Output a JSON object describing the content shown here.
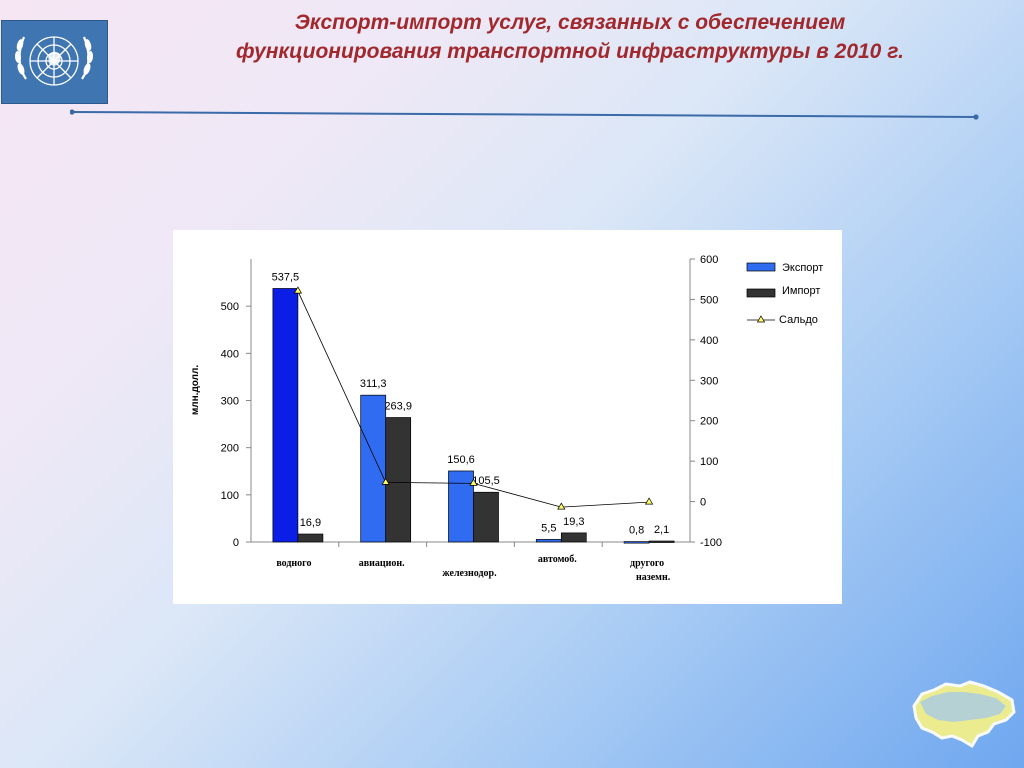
{
  "slide": {
    "title_line1": "Экспорт-импорт услуг, связанных с обеспечением",
    "title_line2": "функционирования транспортной инфраструктуры  в  2010 г."
  },
  "colors": {
    "title": "#a1282c",
    "export": "#2f6cf2",
    "export_first": "#0a1ee6",
    "import": "#333333",
    "saldo_marker": "#ffff66",
    "rule": "#3a6aa8"
  },
  "icons": [
    "un-emblem-icon",
    "ukraine-map-icon"
  ],
  "chart_data": {
    "type": "bar",
    "categories": [
      "водного",
      "авиацион.",
      "железнодор.",
      "автомоб.",
      "другого наземн."
    ],
    "series": [
      {
        "name": "Экспорт",
        "type": "bar",
        "axis": "left",
        "values": [
          537.5,
          311.3,
          150.6,
          5.5,
          0.8
        ]
      },
      {
        "name": "Импорт",
        "type": "bar",
        "axis": "left",
        "values": [
          16.9,
          263.9,
          105.5,
          19.3,
          2.1
        ]
      },
      {
        "name": "Сальдо",
        "type": "line",
        "axis": "right",
        "values": [
          520.6,
          47.4,
          45.1,
          -13.8,
          -1.3
        ]
      }
    ],
    "data_labels": {
      "export": [
        "537,5",
        "311,3",
        "150,6",
        "5,5",
        "0,8"
      ],
      "import": [
        "16,9",
        "263,9",
        "105,5",
        "19,3",
        "2,1"
      ]
    },
    "ylabel": "млн.долл.",
    "ylim": [
      0,
      600
    ],
    "yticks": [
      0,
      100,
      200,
      300,
      400,
      500
    ],
    "y2lim": [
      -100,
      600
    ],
    "y2ticks": [
      -100,
      0,
      100,
      200,
      300,
      400,
      500,
      600
    ],
    "legend_position": "top-right",
    "grid": false
  }
}
